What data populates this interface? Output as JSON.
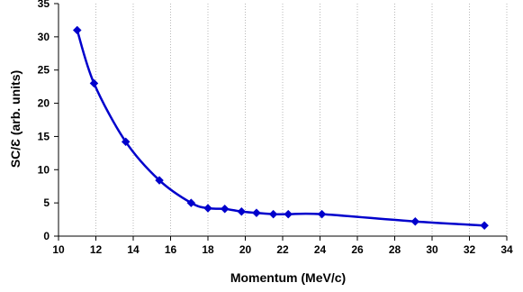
{
  "chart_data": {
    "type": "line",
    "xlabel": "Momentum (MeV/c)",
    "ylabel": "SC/Ɛ  (arb. units)",
    "xlim": [
      10,
      34
    ],
    "ylim": [
      0,
      35
    ],
    "x_ticks": [
      10,
      12,
      14,
      16,
      18,
      20,
      22,
      24,
      26,
      28,
      30,
      32,
      34
    ],
    "y_ticks": [
      0,
      5,
      10,
      15,
      20,
      25,
      30,
      35
    ],
    "grid": {
      "x": true,
      "y": false,
      "style": "dotted"
    },
    "series": [
      {
        "color": "#0000CC",
        "marker": "diamond",
        "smooth": true,
        "x": [
          11.0,
          11.9,
          13.6,
          15.4,
          17.1,
          18.0,
          18.9,
          19.8,
          20.6,
          21.5,
          22.3,
          24.1,
          29.1,
          32.8
        ],
        "y": [
          31.0,
          23.0,
          14.2,
          8.4,
          5.0,
          4.2,
          4.1,
          3.7,
          3.5,
          3.3,
          3.3,
          3.3,
          2.2,
          1.6
        ]
      }
    ]
  }
}
